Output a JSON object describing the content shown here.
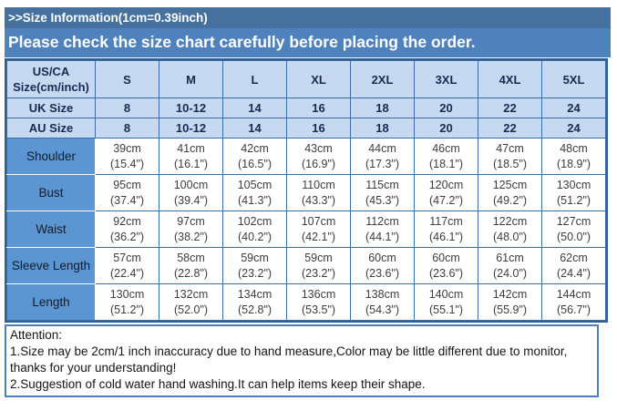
{
  "header": {
    "title": ">>Size Information(1cm=0.39inch)",
    "notice": "Please check the size chart carefully before placing the order."
  },
  "size_chart": {
    "corner_line1": "US/CA",
    "corner_line2": "Size(cm/inch)",
    "columns": [
      "S",
      "M",
      "L",
      "XL",
      "2XL",
      "3XL",
      "4XL",
      "5XL"
    ],
    "size_rows": [
      {
        "label": "UK Size",
        "values": [
          "8",
          "10-12",
          "14",
          "16",
          "18",
          "20",
          "22",
          "24"
        ]
      },
      {
        "label": "AU Size",
        "values": [
          "8",
          "10-12",
          "14",
          "16",
          "18",
          "20",
          "22",
          "24"
        ]
      }
    ],
    "measurement_rows": [
      {
        "label": "Shoulder",
        "values": [
          {
            "cm": "39cm",
            "inch": "(15.4\")"
          },
          {
            "cm": "41cm",
            "inch": "(16.1\")"
          },
          {
            "cm": "42cm",
            "inch": "(16.5\")"
          },
          {
            "cm": "43cm",
            "inch": "(16.9\")"
          },
          {
            "cm": "44cm",
            "inch": "(17.3\")"
          },
          {
            "cm": "46cm",
            "inch": "(18.1\")"
          },
          {
            "cm": "47cm",
            "inch": "(18.5\")"
          },
          {
            "cm": "48cm",
            "inch": "(18.9\")"
          }
        ]
      },
      {
        "label": "Bust",
        "values": [
          {
            "cm": "95cm",
            "inch": "(37.4\")"
          },
          {
            "cm": "100cm",
            "inch": "(39.4\")"
          },
          {
            "cm": "105cm",
            "inch": "(41.3\")"
          },
          {
            "cm": "110cm",
            "inch": "(43.3\")"
          },
          {
            "cm": "115cm",
            "inch": "(45.3\")"
          },
          {
            "cm": "120cm",
            "inch": "(47.2\")"
          },
          {
            "cm": "125cm",
            "inch": "(49.2\")"
          },
          {
            "cm": "130cm",
            "inch": "(51.2\")"
          }
        ]
      },
      {
        "label": "Waist",
        "values": [
          {
            "cm": "92cm",
            "inch": "(36.2\")"
          },
          {
            "cm": "97cm",
            "inch": "(38.2\")"
          },
          {
            "cm": "102cm",
            "inch": "(40.2\")"
          },
          {
            "cm": "107cm",
            "inch": "(42.1\")"
          },
          {
            "cm": "112cm",
            "inch": "(44.1\")"
          },
          {
            "cm": "117cm",
            "inch": "(46.1\")"
          },
          {
            "cm": "122cm",
            "inch": "(48.0\")"
          },
          {
            "cm": "127cm",
            "inch": "(50.0\")"
          }
        ]
      },
      {
        "label": "Sleeve Length",
        "values": [
          {
            "cm": "57cm",
            "inch": "(22.4\")"
          },
          {
            "cm": "58cm",
            "inch": "(22.8\")"
          },
          {
            "cm": "59cm",
            "inch": "(23.2\")"
          },
          {
            "cm": "59cm",
            "inch": "(23.2\")"
          },
          {
            "cm": "60cm",
            "inch": "(23.6\")"
          },
          {
            "cm": "60cm",
            "inch": "(23.6\")"
          },
          {
            "cm": "61cm",
            "inch": "(24.0\")"
          },
          {
            "cm": "62cm",
            "inch": "(24.4\")"
          }
        ]
      },
      {
        "label": "Length",
        "values": [
          {
            "cm": "130cm",
            "inch": "(51.2\")"
          },
          {
            "cm": "132cm",
            "inch": "(52.0\")"
          },
          {
            "cm": "134cm",
            "inch": "(52.8\")"
          },
          {
            "cm": "136cm",
            "inch": "(53.5\")"
          },
          {
            "cm": "138cm",
            "inch": "(54.3\")"
          },
          {
            "cm": "140cm",
            "inch": "(55.1\")"
          },
          {
            "cm": "142cm",
            "inch": "(55.9\")"
          },
          {
            "cm": "144cm",
            "inch": "(56.7\")"
          }
        ]
      }
    ]
  },
  "attention": {
    "title": "Attention:",
    "lines": [
      "1.Size may be 2cm/1 inch inaccuracy due to hand measure,Color may be little different due to monitor, thanks for your understanding!",
      "2.Suggestion of cold water hand washing.It can help items keep their shape."
    ]
  },
  "colors": {
    "strip_blue": "#46719e",
    "band_blue": "#4f81bd",
    "light_cell_blue": "#c6d9f0",
    "label_cell_blue": "#5b96d2",
    "grid_border_blue": "#3a6ea8",
    "outer_border_blue": "#2e6094",
    "attention_border_blue": "#4e7fba"
  }
}
